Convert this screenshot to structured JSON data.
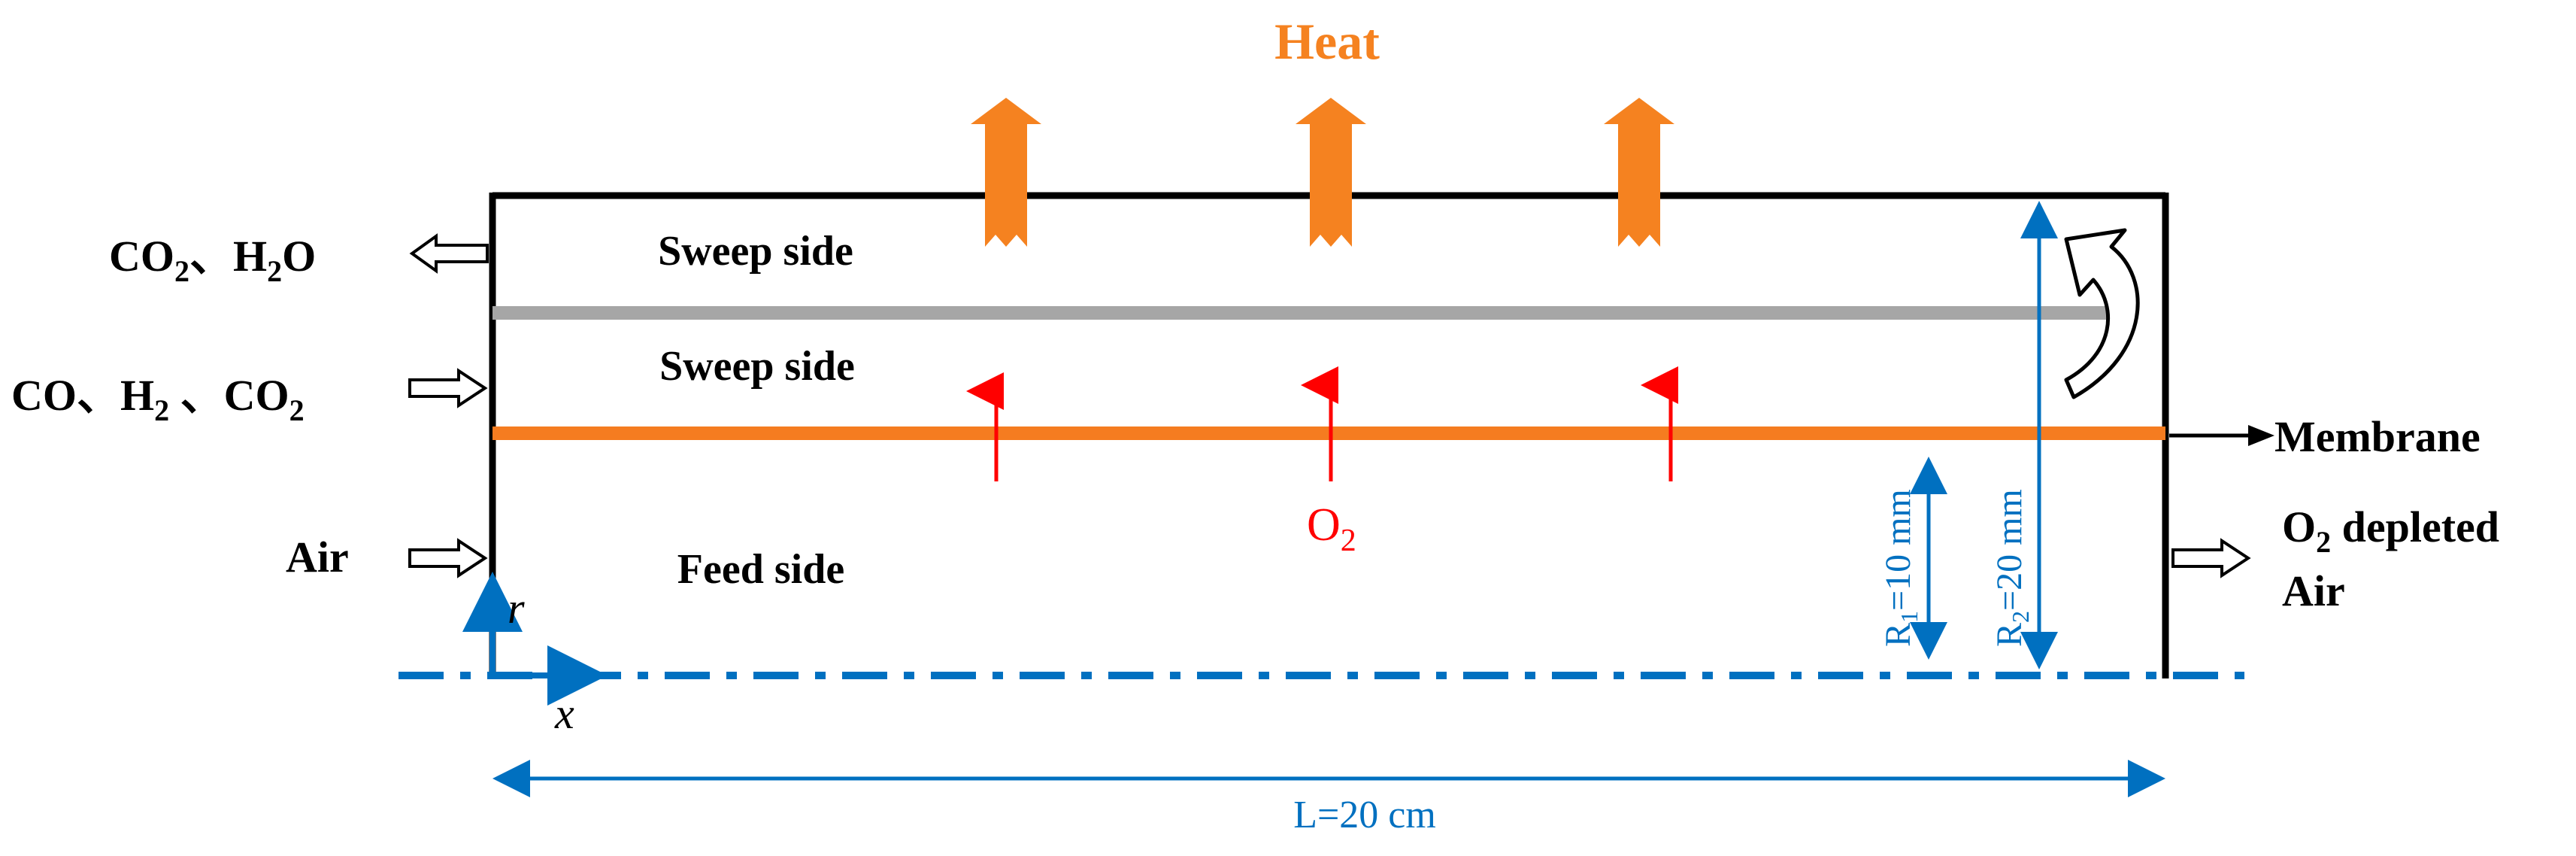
{
  "labels": {
    "heat": "Heat",
    "sweep_top": "Sweep side",
    "sweep_mid": "Sweep side",
    "feed": "Feed side",
    "membrane": "Membrane",
    "o2": "O",
    "o2_sub": "2",
    "r1_a": "R",
    "r1_sub": "1",
    "r1_b": "=10 mm",
    "r2_a": "R",
    "r2_sub": "2",
    "r2_b": "=20 mm",
    "length": "L=20 cm",
    "axis_r": "r",
    "axis_x": "x"
  },
  "inlets": {
    "outlet_top": {
      "a": "CO",
      "a_sub": "2",
      "sep": "、H",
      "b_sub": "2",
      "b": "O"
    },
    "inlet_mid": {
      "a": "CO、H",
      "a_sub": "2",
      "b": " 、CO",
      "b_sub": "2"
    },
    "inlet_air": "Air",
    "outlet_air_line1_a": "O",
    "outlet_air_line1_sub": "2",
    "outlet_air_line1_b": " depleted",
    "outlet_air_line2": "Air"
  },
  "colors": {
    "heat_orange": "#F58220",
    "membrane_orange": "#F57C20",
    "gray_tube": "#A6A6A6",
    "red": "#FF0000",
    "blue": "#0070C0",
    "black": "#000000"
  }
}
